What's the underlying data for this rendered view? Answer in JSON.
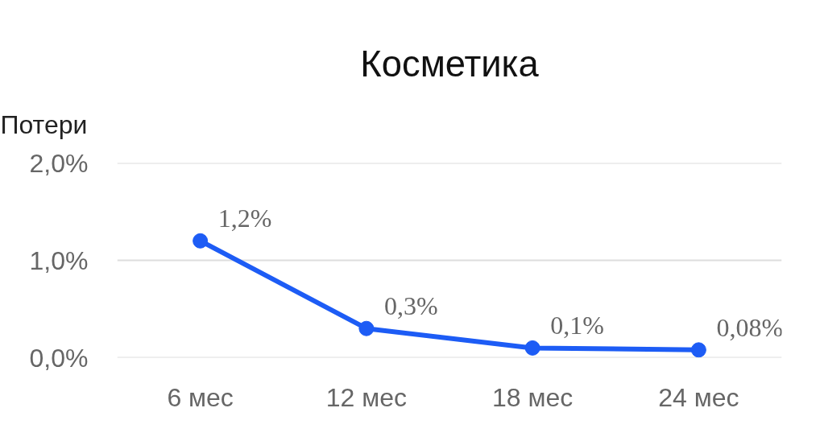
{
  "chart_data": {
    "type": "line",
    "title": "Косметика",
    "ylabel": "Потери",
    "categories": [
      "6 мес",
      "12 мес",
      "18 мес",
      "24 мес"
    ],
    "series": [
      {
        "color": "#1d5cf5",
        "values": [
          1.2,
          0.3,
          0.1,
          0.08
        ],
        "value_labels": [
          "1,2%",
          "0,3%",
          "0,1%",
          "0,08%"
        ]
      }
    ],
    "ylim": [
      0,
      2
    ],
    "yticks": [
      {
        "value": 0,
        "label": "0,0%"
      },
      {
        "value": 1,
        "label": "1,0%"
      },
      {
        "value": 2,
        "label": "2,0%"
      }
    ],
    "grid": "y",
    "marker": "circle",
    "line_style": "solid"
  }
}
